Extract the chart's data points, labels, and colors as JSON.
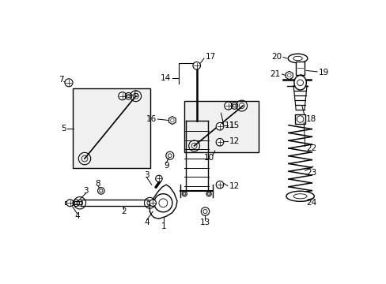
{
  "bg_color": "#ffffff",
  "line_color": "#000000",
  "box_fill": "#f0f0f0",
  "figsize": [
    4.89,
    3.6
  ],
  "dpi": 100,
  "xlim": [
    0,
    4.89
  ],
  "ylim": [
    0,
    3.6
  ]
}
